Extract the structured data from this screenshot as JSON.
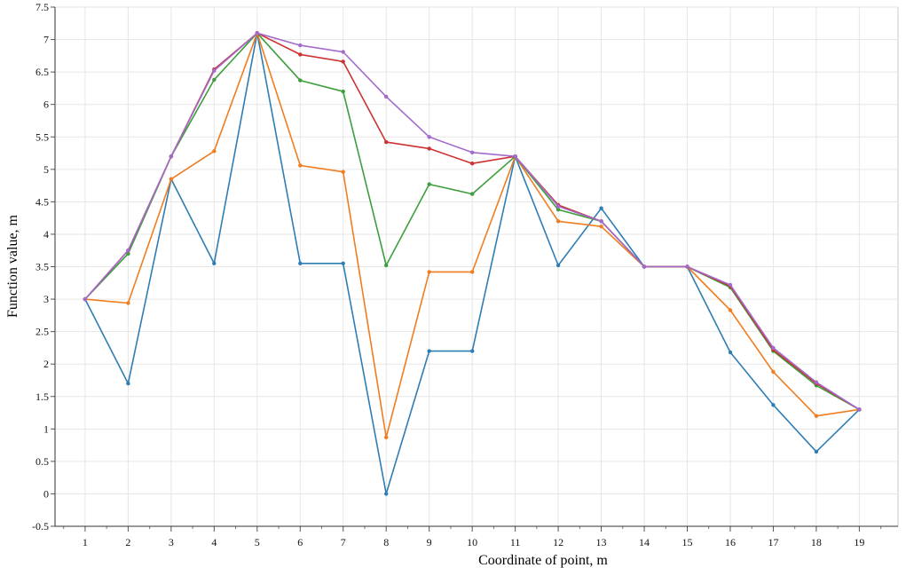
{
  "chart_data": {
    "type": "line",
    "title": "",
    "xlabel": "Coordinate of point, m",
    "ylabel": "Function value, m",
    "x": [
      1,
      2,
      3,
      4,
      5,
      6,
      7,
      8,
      9,
      10,
      11,
      12,
      13,
      14,
      15,
      16,
      17,
      18,
      19
    ],
    "xlim": [
      0.3,
      19.9
    ],
    "ylim": [
      -0.5,
      7.5
    ],
    "yticks": [
      -0.5,
      0,
      0.5,
      1,
      1.5,
      2,
      2.5,
      3,
      3.5,
      4,
      4.5,
      5,
      5.5,
      6,
      6.5,
      7,
      7.5
    ],
    "yticklabels": [
      "-0.5",
      "0",
      "0.5",
      "1",
      "1.5",
      "2",
      "2.5",
      "3",
      "3.5",
      "4",
      "4.5",
      "5",
      "5.5",
      "6",
      "6.5",
      "7",
      "7.5"
    ],
    "xticks": [
      1,
      2,
      3,
      4,
      5,
      6,
      7,
      8,
      9,
      10,
      11,
      12,
      13,
      14,
      15,
      16,
      17,
      18,
      19
    ],
    "xticklabels": [
      "1",
      "2",
      "3",
      "4",
      "5",
      "6",
      "7",
      "8",
      "9",
      "10",
      "11",
      "12",
      "13",
      "14",
      "15",
      "16",
      "17",
      "18",
      "19"
    ],
    "grid": true,
    "legend": "none",
    "series": [
      {
        "color": "#2e7db5",
        "values": [
          3.0,
          1.7,
          4.85,
          3.55,
          7.1,
          3.55,
          3.55,
          0.0,
          2.2,
          2.2,
          5.2,
          3.52,
          4.4,
          3.5,
          3.5,
          2.18,
          1.37,
          0.65,
          1.3
        ]
      },
      {
        "color": "#f07d1f",
        "values": [
          3.0,
          2.94,
          4.85,
          5.28,
          7.1,
          5.06,
          4.96,
          0.87,
          3.42,
          3.42,
          5.2,
          4.2,
          4.12,
          3.5,
          3.5,
          2.83,
          1.88,
          1.2,
          1.3
        ]
      },
      {
        "color": "#3c9e3c",
        "values": [
          3.0,
          3.7,
          5.2,
          6.38,
          7.1,
          6.37,
          6.2,
          3.52,
          4.77,
          4.62,
          5.2,
          4.38,
          4.2,
          3.5,
          3.5,
          3.18,
          2.2,
          1.67,
          1.3
        ]
      },
      {
        "color": "#cc3232",
        "values": [
          3.0,
          3.75,
          5.2,
          6.54,
          7.1,
          6.77,
          6.66,
          5.42,
          5.32,
          5.09,
          5.2,
          4.45,
          4.2,
          3.5,
          3.5,
          3.2,
          2.22,
          1.7,
          1.3
        ]
      },
      {
        "color": "#a36acb",
        "values": [
          3.0,
          3.75,
          5.2,
          6.52,
          7.1,
          6.91,
          6.81,
          6.12,
          5.5,
          5.26,
          5.2,
          4.43,
          4.2,
          3.5,
          3.5,
          3.22,
          2.25,
          1.72,
          1.3
        ]
      }
    ]
  }
}
